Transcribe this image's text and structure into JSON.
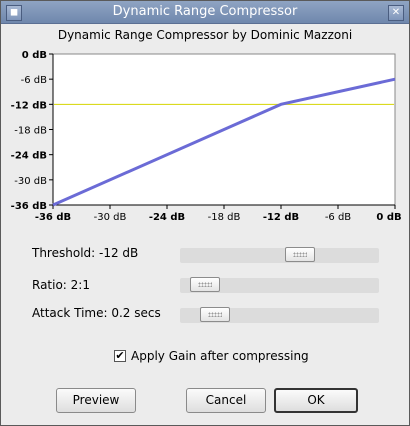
{
  "window": {
    "title": "Dynamic Range Compressor"
  },
  "header": {
    "subtitle": "Dynamic Range Compressor by Dominic Mazzoni"
  },
  "chart_data": {
    "type": "line",
    "x_ticks": [
      {
        "value": -36,
        "label": "-36 dB",
        "bold": true
      },
      {
        "value": -30,
        "label": "-30 dB",
        "bold": false
      },
      {
        "value": -24,
        "label": "-24 dB",
        "bold": true
      },
      {
        "value": -18,
        "label": "-18 dB",
        "bold": false
      },
      {
        "value": -12,
        "label": "-12 dB",
        "bold": true
      },
      {
        "value": -6,
        "label": "-6 dB",
        "bold": false
      },
      {
        "value": 0,
        "label": "0 dB",
        "bold": true
      }
    ],
    "y_ticks": [
      {
        "value": 0,
        "label": "0 dB",
        "bold": true
      },
      {
        "value": -6,
        "label": "-6 dB",
        "bold": false
      },
      {
        "value": -12,
        "label": "-12 dB",
        "bold": true
      },
      {
        "value": -18,
        "label": "-18 dB",
        "bold": false
      },
      {
        "value": -24,
        "label": "-24 dB",
        "bold": true
      },
      {
        "value": -30,
        "label": "-30 dB",
        "bold": false
      },
      {
        "value": -36,
        "label": "-36 dB",
        "bold": true
      }
    ],
    "xlim": [
      -36,
      0
    ],
    "ylim": [
      -36,
      0
    ],
    "series": [
      {
        "color": "#6b6bd6",
        "x": [
          -36,
          -12,
          0
        ],
        "y": [
          -36,
          -12,
          -6
        ]
      }
    ],
    "threshold_line": {
      "y": -12,
      "color": "#d4d400"
    }
  },
  "controls": {
    "threshold": {
      "label": "Threshold: -12 dB",
      "fraction": 0.62
    },
    "ratio": {
      "label": "Ratio: 2:1",
      "fraction": 0.06
    },
    "attack": {
      "label": "Attack Time: 0.2 secs",
      "fraction": 0.12
    }
  },
  "options": {
    "apply_gain_label": "Apply Gain after compressing",
    "apply_gain_checked": "✔"
  },
  "buttons": {
    "preview": "Preview",
    "cancel": "Cancel",
    "ok": "OK"
  }
}
